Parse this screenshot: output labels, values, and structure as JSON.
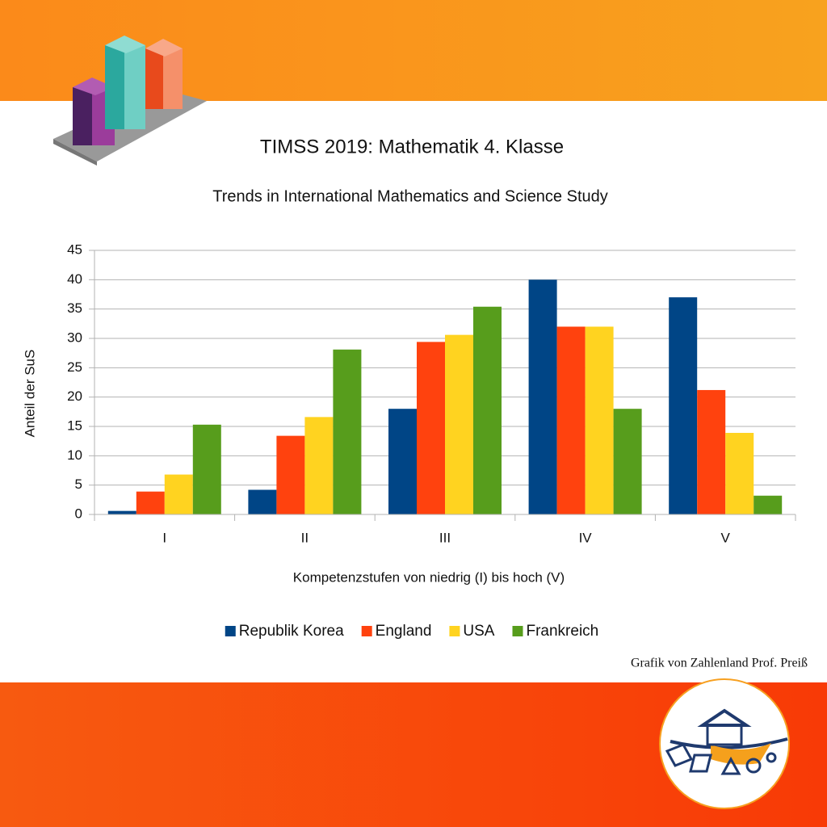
{
  "chart_data": {
    "type": "bar",
    "title": "TIMSS 2019: Mathematik 4. Klasse",
    "subtitle": "Trends in International Mathematics and Science Study",
    "x_label": "Kompetenzstufen von niedrig (I) bis hoch (V)",
    "y_label": "Anteil der SuS",
    "categories": [
      "I",
      "II",
      "III",
      "IV",
      "V"
    ],
    "series": [
      {
        "name": "Republik Korea",
        "color": "#004586",
        "values": [
          0.6,
          4.2,
          18,
          40,
          37
        ]
      },
      {
        "name": "England",
        "color": "#ff420e",
        "values": [
          3.9,
          13.4,
          29.4,
          32,
          21.2
        ]
      },
      {
        "name": "USA",
        "color": "#ffd320",
        "values": [
          6.8,
          16.6,
          30.6,
          32,
          13.9
        ]
      },
      {
        "name": "Frankreich",
        "color": "#579d1c",
        "values": [
          15.3,
          28.1,
          35.4,
          18,
          3.2
        ]
      }
    ],
    "ylim": [
      0,
      45
    ],
    "yticks": [
      0,
      5,
      10,
      15,
      20,
      25,
      30,
      35,
      40,
      45
    ],
    "grid": true,
    "legend": "bottom"
  },
  "credit": "Grafik von Zahlenland Prof. Preiß"
}
